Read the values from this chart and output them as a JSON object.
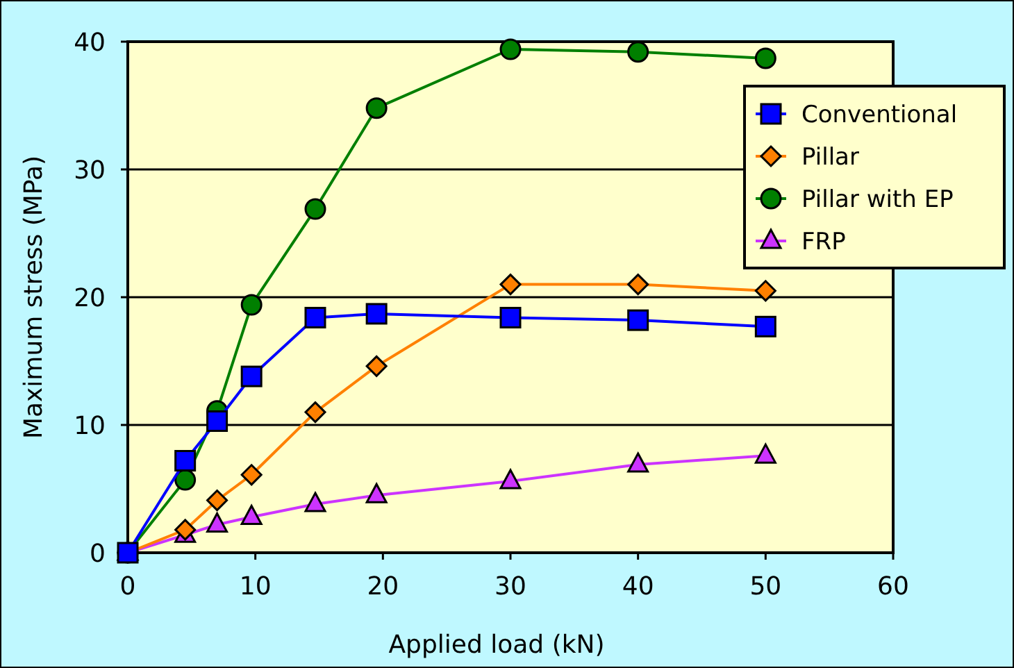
{
  "chart_data": {
    "type": "line",
    "xlabel": "Applied load (kN)",
    "ylabel": "Maximum stress (MPa)",
    "xlim": [
      0,
      60
    ],
    "xticks": [
      0,
      10,
      20,
      30,
      40,
      50,
      60
    ],
    "ylim": [
      0,
      40
    ],
    "yticks": [
      0,
      10,
      20,
      30,
      40
    ],
    "grid": "y",
    "legend": "top right",
    "x": [
      0,
      4.5,
      7,
      9.7,
      14.7,
      19.5,
      30,
      40,
      50
    ],
    "series": [
      {
        "name": "Conventional",
        "color": "#0000ff",
        "marker": "square",
        "values": [
          0,
          7.2,
          10.3,
          13.8,
          18.4,
          18.7,
          18.4,
          18.2,
          17.7
        ]
      },
      {
        "name": "Pillar",
        "color": "#ff8000",
        "marker": "diamond",
        "values": [
          0,
          1.8,
          4.1,
          6.1,
          11.0,
          14.6,
          21.0,
          21.0,
          20.5
        ]
      },
      {
        "name": "Pillar with EP",
        "color": "#007f00",
        "marker": "circle",
        "values": [
          0,
          5.7,
          11.1,
          19.4,
          26.9,
          34.8,
          39.4,
          39.2,
          38.7
        ]
      },
      {
        "name": "FRP",
        "color": "#cc33ff",
        "marker": "triangle",
        "values": [
          0,
          1.4,
          2.2,
          2.8,
          3.8,
          4.5,
          5.6,
          6.9,
          7.6
        ]
      }
    ]
  }
}
